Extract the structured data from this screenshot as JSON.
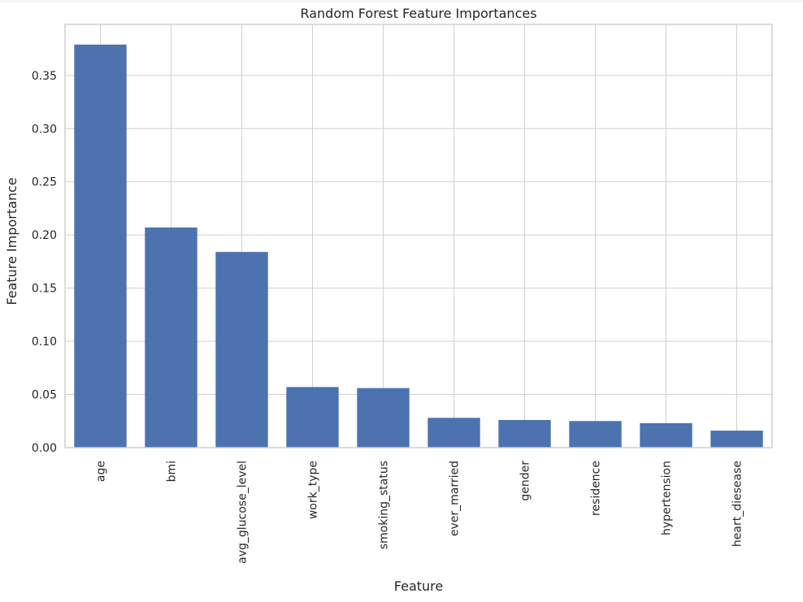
{
  "chart_data": {
    "type": "bar",
    "title": "Random Forest Feature Importances",
    "xlabel": "Feature",
    "ylabel": "Feature Importance",
    "categories": [
      "age",
      "bmi",
      "avg_glucose_level",
      "work_type",
      "smoking_status",
      "ever_married",
      "gender",
      "residence",
      "hypertension",
      "heart_diesease"
    ],
    "values": [
      0.379,
      0.207,
      0.184,
      0.057,
      0.056,
      0.028,
      0.026,
      0.025,
      0.023,
      0.016
    ],
    "ylim": [
      0,
      0.398
    ],
    "yticks": [
      0.0,
      0.05,
      0.1,
      0.15,
      0.2,
      0.25,
      0.3,
      0.35
    ],
    "ytick_labels": [
      "0.00",
      "0.05",
      "0.10",
      "0.15",
      "0.20",
      "0.25",
      "0.30",
      "0.35"
    ],
    "bar_color": "#4c72b0",
    "grid": true,
    "legend": "none"
  }
}
